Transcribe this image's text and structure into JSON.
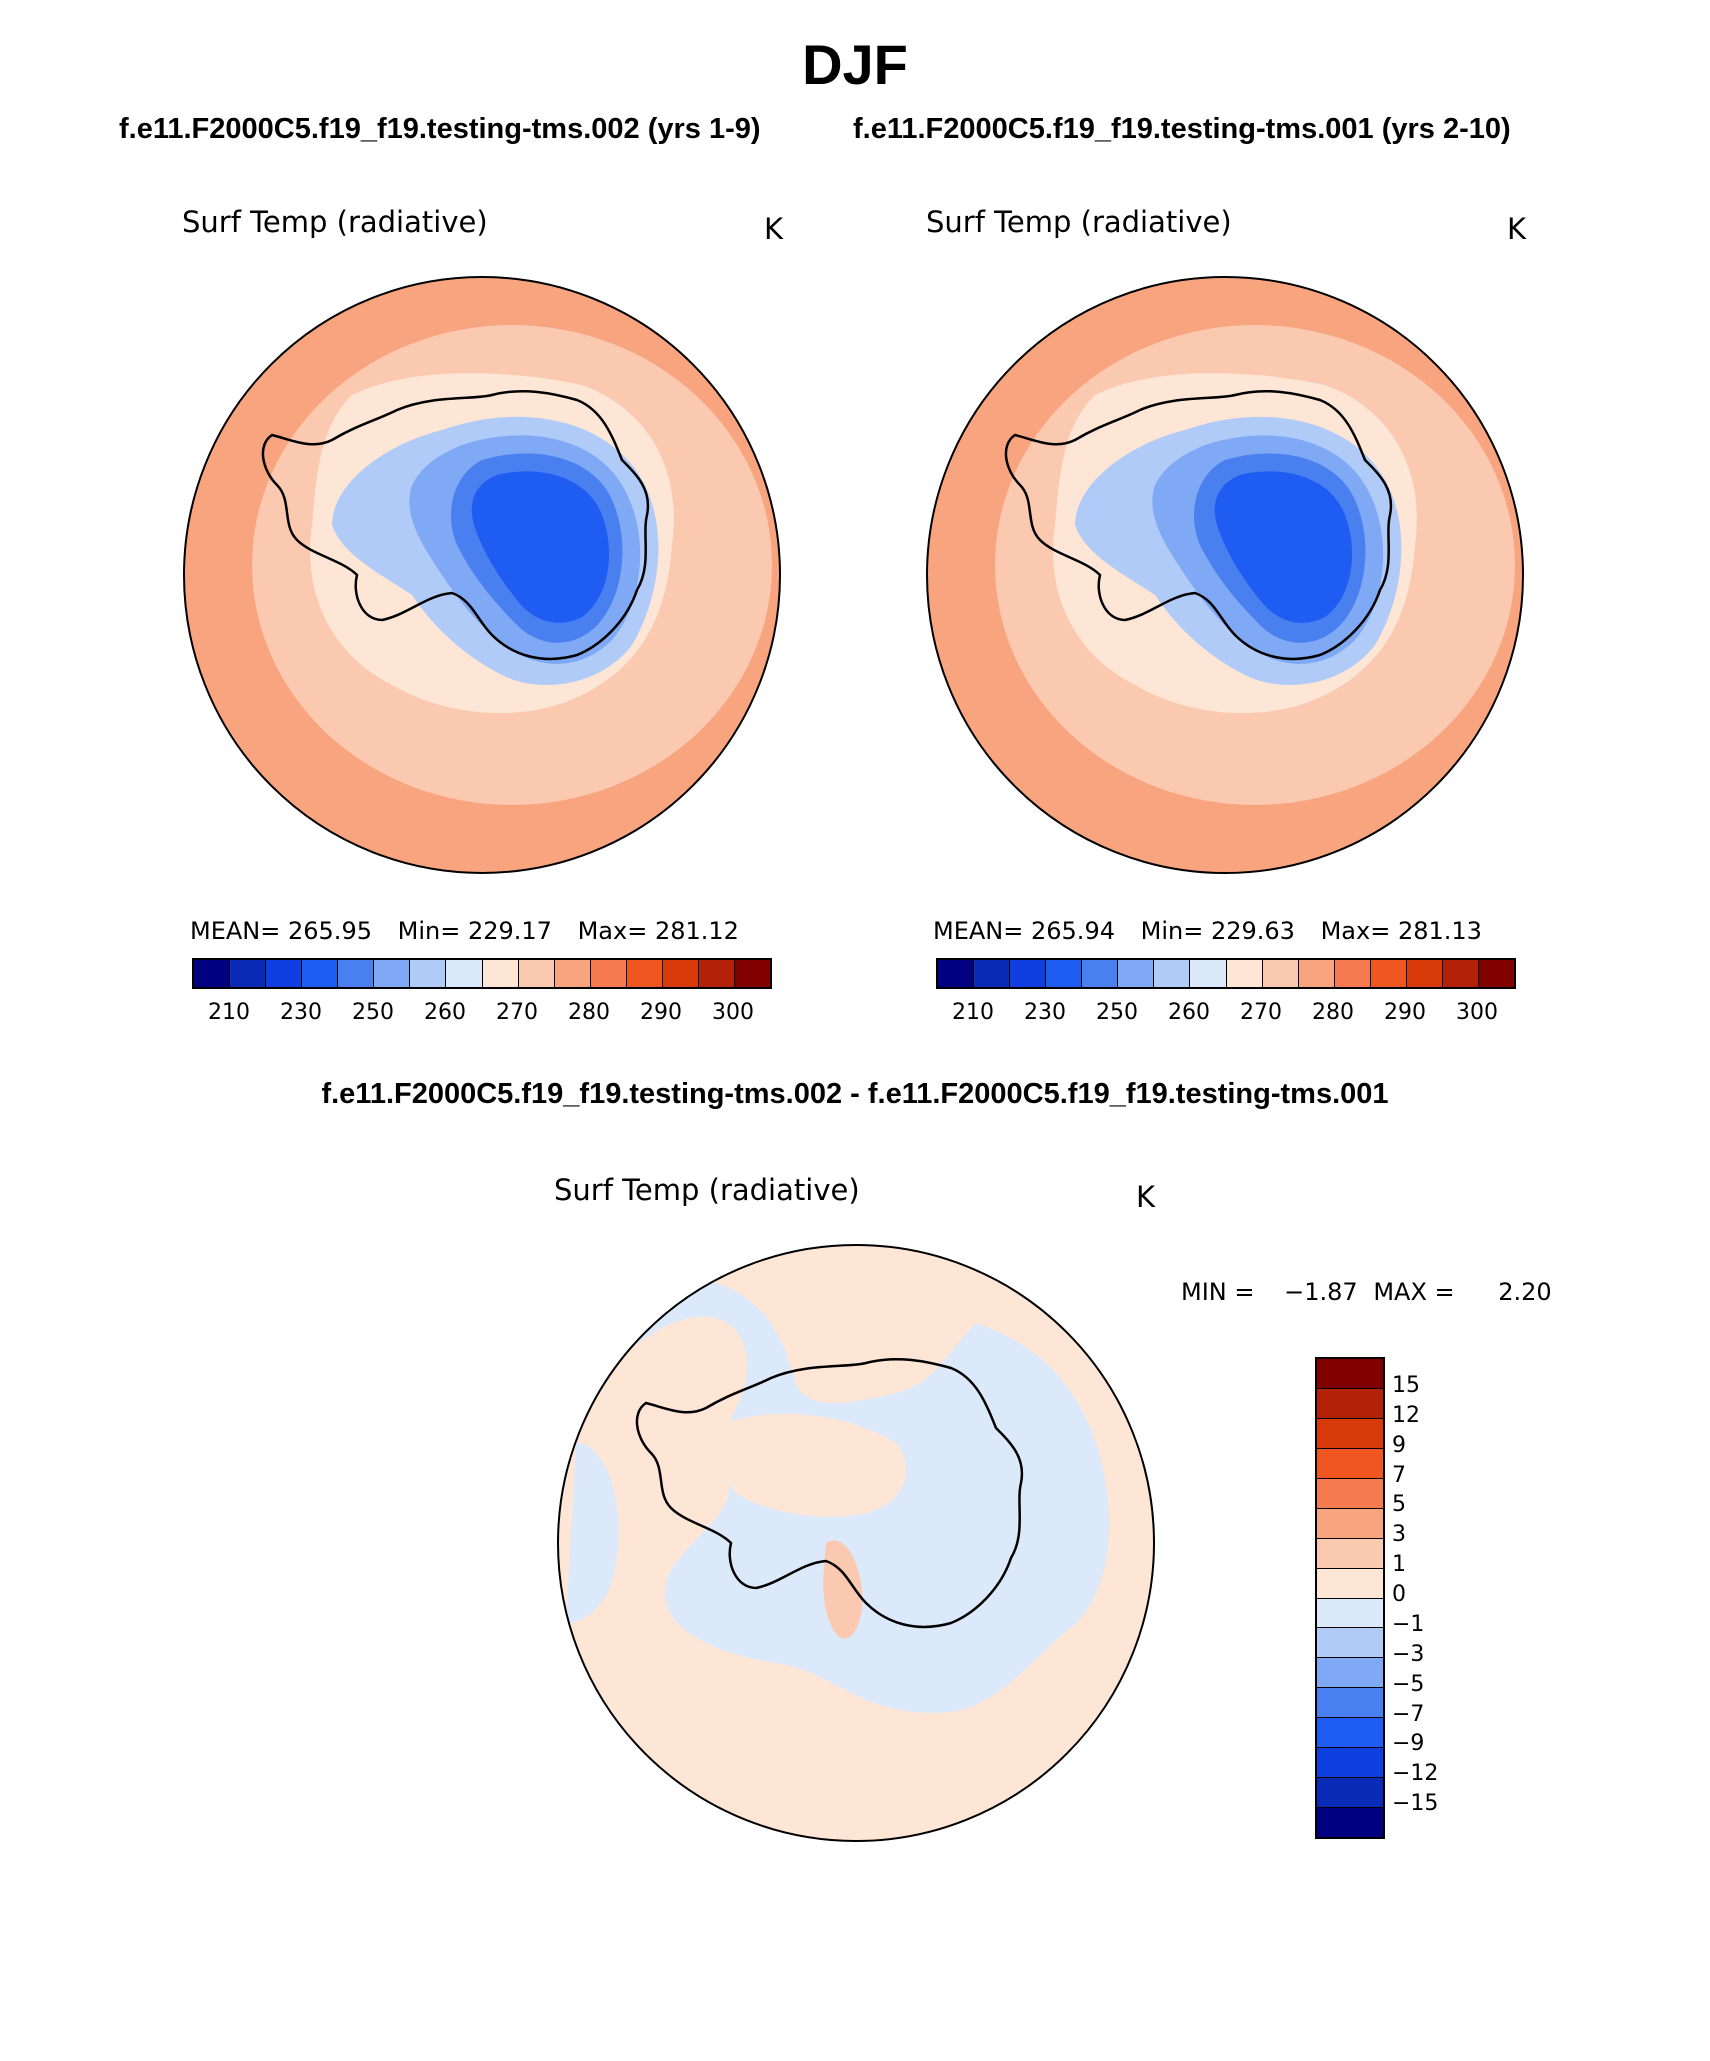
{
  "title": "DJF",
  "panels": [
    {
      "case": "f.e11.F2000C5.f19_f19.testing-tms.002 (yrs 1-9)",
      "variable": "Surf Temp (radiative)",
      "units": "K",
      "mean_label": "MEAN=",
      "mean": "265.95",
      "min_label": "Min=",
      "min": "229.17",
      "max_label": "Max=",
      "max": "281.12"
    },
    {
      "case": "f.e11.F2000C5.f19_f19.testing-tms.001 (yrs 2-10)",
      "variable": "Surf Temp (radiative)",
      "units": "K",
      "mean_label": "MEAN=",
      "mean": "265.94",
      "min_label": "Min=",
      "min": "229.63",
      "max_label": "Max=",
      "max": "281.13"
    }
  ],
  "abs_colorbar": {
    "colors": [
      "#000080",
      "#0a2bb8",
      "#0f3fe0",
      "#1f5cf2",
      "#4a7ff0",
      "#7fa8f5",
      "#b0cbf7",
      "#dce9fb",
      "#fde6d6",
      "#fbc8b0",
      "#f7a47f",
      "#f57a4f",
      "#f0561f",
      "#d83a0a",
      "#b32208",
      "#800000"
    ],
    "tick_labels": [
      "210",
      "230",
      "250",
      "260",
      "270",
      "280",
      "290",
      "300"
    ]
  },
  "diff": {
    "title": "f.e11.F2000C5.f19_f19.testing-tms.002 - f.e11.F2000C5.f19_f19.testing-tms.001",
    "variable": "Surf Temp (radiative)",
    "units": "K",
    "min_label": "MIN =",
    "min": "−1.87",
    "max_label": "MAX =",
    "max": "2.20",
    "colorbar_colors": [
      "#800000",
      "#b32208",
      "#d83a0a",
      "#f0561f",
      "#f57a4f",
      "#f7a47f",
      "#fbc8b0",
      "#fde6d6",
      "#dce9fb",
      "#b0cbf7",
      "#7fa8f5",
      "#4a7ff0",
      "#1f5cf2",
      "#0f3fe0",
      "#0a2bb8",
      "#000080"
    ],
    "tick_labels": [
      "15",
      "12",
      "9",
      "7",
      "5",
      "3",
      "1",
      "0",
      "−1",
      "−3",
      "−5",
      "−7",
      "−9",
      "−12",
      "−15"
    ]
  }
}
